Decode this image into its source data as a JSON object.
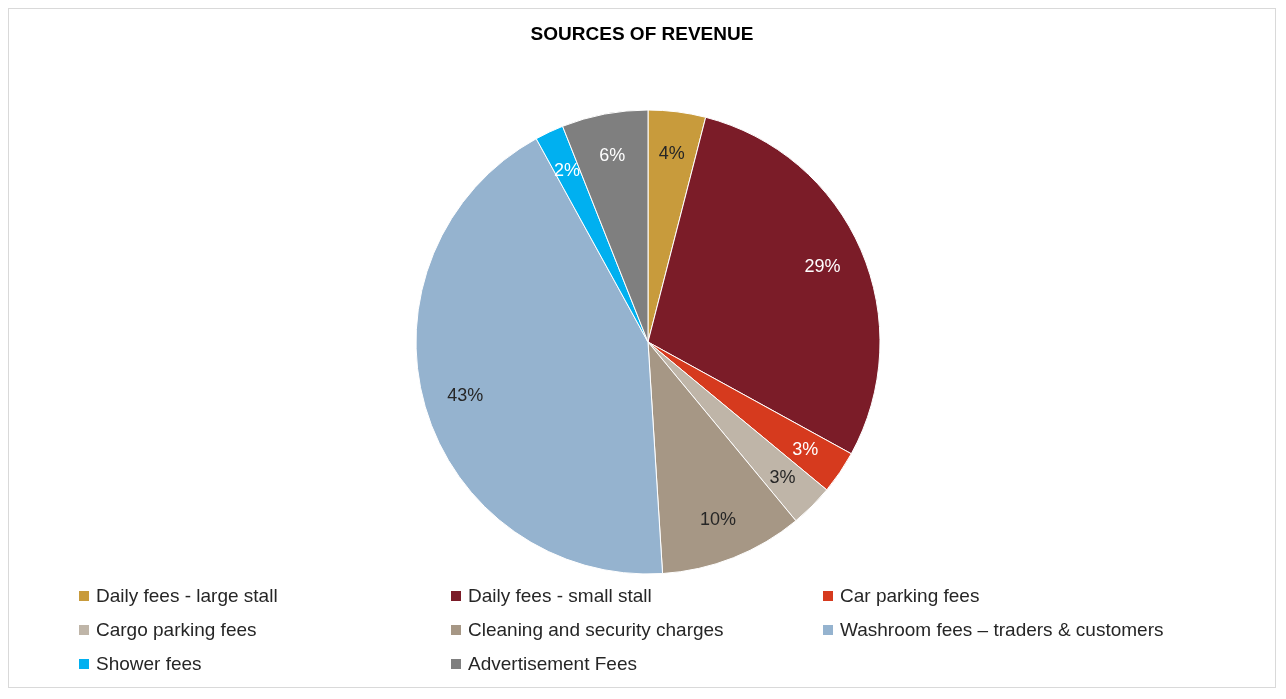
{
  "chart_data": {
    "type": "pie",
    "title": "SOURCES OF REVENUE",
    "categories": [
      "Daily fees - large stall",
      "Daily fees - small stall",
      "Car parking fees",
      "Cargo parking fees",
      "Cleaning and security charges",
      "Washroom fees – traders & customers",
      "Shower fees",
      "Advertisement Fees"
    ],
    "values": [
      4,
      29,
      3,
      3,
      10,
      43,
      2,
      6
    ],
    "value_labels": [
      "4%",
      "29%",
      "3%",
      "3%",
      "10%",
      "43%",
      "2%",
      "6%"
    ],
    "colors": [
      "#c89b3c",
      "#7b1c28",
      "#d63a1e",
      "#bfb5a8",
      "#a69785",
      "#95b3cf",
      "#00b0f0",
      "#7f7f7f"
    ],
    "legend": "bottom"
  }
}
